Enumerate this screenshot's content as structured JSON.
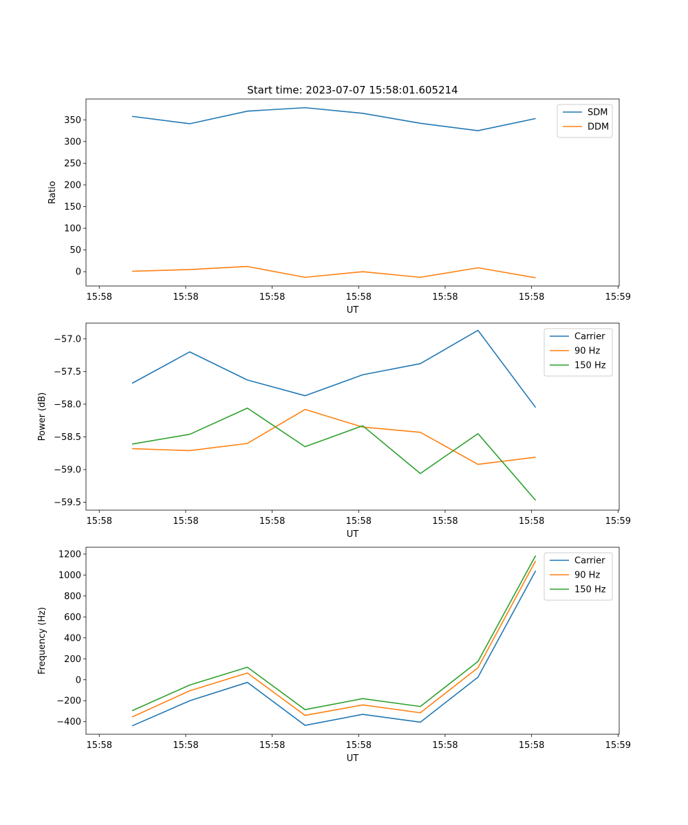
{
  "figure": {
    "title": "Start time: 2023-07-07 15:58:01.605214"
  },
  "chart_data": [
    {
      "type": "line",
      "title": "Start time: 2023-07-07 15:58:01.605214",
      "xlabel": "UT",
      "ylabel": "Ratio",
      "x": [
        1,
        2,
        3,
        4,
        5,
        6,
        7,
        8
      ],
      "xlim": [
        0.2,
        9.45
      ],
      "x_ticks": [
        0.43,
        1.93,
        3.43,
        4.93,
        6.43,
        7.93,
        9.43
      ],
      "x_tick_labels": [
        "15:58",
        "15:58",
        "15:58",
        "15:58",
        "15:58",
        "15:58",
        "15:59"
      ],
      "ylim": [
        -33,
        398
      ],
      "y_ticks": [
        0,
        50,
        100,
        150,
        200,
        250,
        300,
        350
      ],
      "y_tick_labels": [
        "0",
        "50",
        "100",
        "150",
        "200",
        "250",
        "300",
        "350"
      ],
      "legend_position": "top-right",
      "series": [
        {
          "name": "SDM",
          "color": "#1f77b4",
          "values": [
            358,
            341,
            370,
            378,
            365,
            342,
            325,
            353
          ]
        },
        {
          "name": "DDM",
          "color": "#ff7f0e",
          "values": [
            1,
            5,
            12,
            -13,
            0,
            -13,
            9,
            -14
          ]
        }
      ]
    },
    {
      "type": "line",
      "title": "",
      "xlabel": "UT",
      "ylabel": "Power (dB)",
      "x": [
        1,
        2,
        3,
        4,
        5,
        6,
        7,
        8
      ],
      "xlim": [
        0.2,
        9.45
      ],
      "x_ticks": [
        0.43,
        1.93,
        3.43,
        4.93,
        6.43,
        7.93,
        9.43
      ],
      "x_tick_labels": [
        "15:58",
        "15:58",
        "15:58",
        "15:58",
        "15:58",
        "15:58",
        "15:59"
      ],
      "ylim": [
        -59.62,
        -56.76
      ],
      "y_ticks": [
        -59.5,
        -59.0,
        -58.5,
        -58.0,
        -57.5,
        -57.0
      ],
      "y_tick_labels": [
        "−59.5",
        "−59.0",
        "−58.5",
        "−58.0",
        "−57.5",
        "−57.0"
      ],
      "legend_position": "top-right",
      "series": [
        {
          "name": "Carrier",
          "color": "#1f77b4",
          "values": [
            -57.68,
            -57.2,
            -57.63,
            -57.87,
            -57.55,
            -57.38,
            -56.87,
            -58.05
          ]
        },
        {
          "name": "90 Hz",
          "color": "#ff7f0e",
          "values": [
            -58.68,
            -58.71,
            -58.6,
            -58.08,
            -58.35,
            -58.43,
            -58.92,
            -58.81
          ]
        },
        {
          "name": "150 Hz",
          "color": "#2ca02c",
          "values": [
            -58.61,
            -58.46,
            -58.06,
            -58.65,
            -58.33,
            -59.06,
            -58.45,
            -59.47
          ]
        }
      ]
    },
    {
      "type": "line",
      "title": "",
      "xlabel": "UT",
      "ylabel": "Frequency (Hz)",
      "x": [
        1,
        2,
        3,
        4,
        5,
        6,
        7,
        8
      ],
      "xlim": [
        0.2,
        9.45
      ],
      "x_ticks": [
        0.43,
        1.93,
        3.43,
        4.93,
        6.43,
        7.93,
        9.43
      ],
      "x_tick_labels": [
        "15:58",
        "15:58",
        "15:58",
        "15:58",
        "15:58",
        "15:58",
        "15:59"
      ],
      "ylim": [
        -520,
        1265
      ],
      "y_ticks": [
        -400,
        -200,
        0,
        200,
        400,
        600,
        800,
        1000,
        1200
      ],
      "y_tick_labels": [
        "−400",
        "−200",
        "0",
        "200",
        "400",
        "600",
        "800",
        "1000",
        "1200"
      ],
      "legend_position": "top-right",
      "series": [
        {
          "name": "Carrier",
          "color": "#1f77b4",
          "values": [
            -440,
            -200,
            -25,
            -435,
            -330,
            -405,
            25,
            1040
          ]
        },
        {
          "name": "90 Hz",
          "color": "#ff7f0e",
          "values": [
            -355,
            -105,
            65,
            -340,
            -240,
            -315,
            115,
            1135
          ]
        },
        {
          "name": "150 Hz",
          "color": "#2ca02c",
          "values": [
            -295,
            -50,
            120,
            -285,
            -180,
            -255,
            175,
            1185
          ]
        }
      ]
    }
  ]
}
